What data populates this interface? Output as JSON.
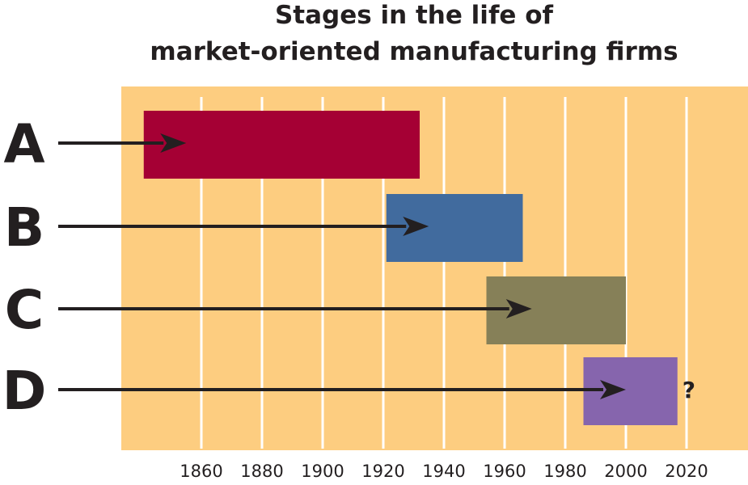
{
  "chart_data": {
    "type": "bar",
    "subtype": "horizontal-range",
    "title_lines": [
      "Stages in the life of",
      "market-oriented manufacturing firms"
    ],
    "xlabel": "",
    "ylabel": "",
    "xlim": [
      1835,
      2040
    ],
    "x_ticks": [
      1860,
      1880,
      1900,
      1920,
      1940,
      1960,
      1980,
      2000,
      2020
    ],
    "grid": "vertical",
    "series": [
      {
        "label": "A",
        "start": 1841,
        "end": 1932,
        "color": "#a50034",
        "arrow_to": 1855
      },
      {
        "label": "B",
        "start": 1921,
        "end": 1966,
        "color": "#416b9e",
        "arrow_to": 1935
      },
      {
        "label": "C",
        "start": 1954,
        "end": 2000,
        "color": "#868058",
        "arrow_to": 1969
      },
      {
        "label": "D",
        "start": 1986,
        "end": 2017,
        "color": "#8665ad",
        "arrow_to": 2000,
        "note": "?"
      }
    ],
    "colors": {
      "plot_background": "#fdcd80",
      "gridline": "#ffffff",
      "arrow": "#231f20"
    }
  }
}
